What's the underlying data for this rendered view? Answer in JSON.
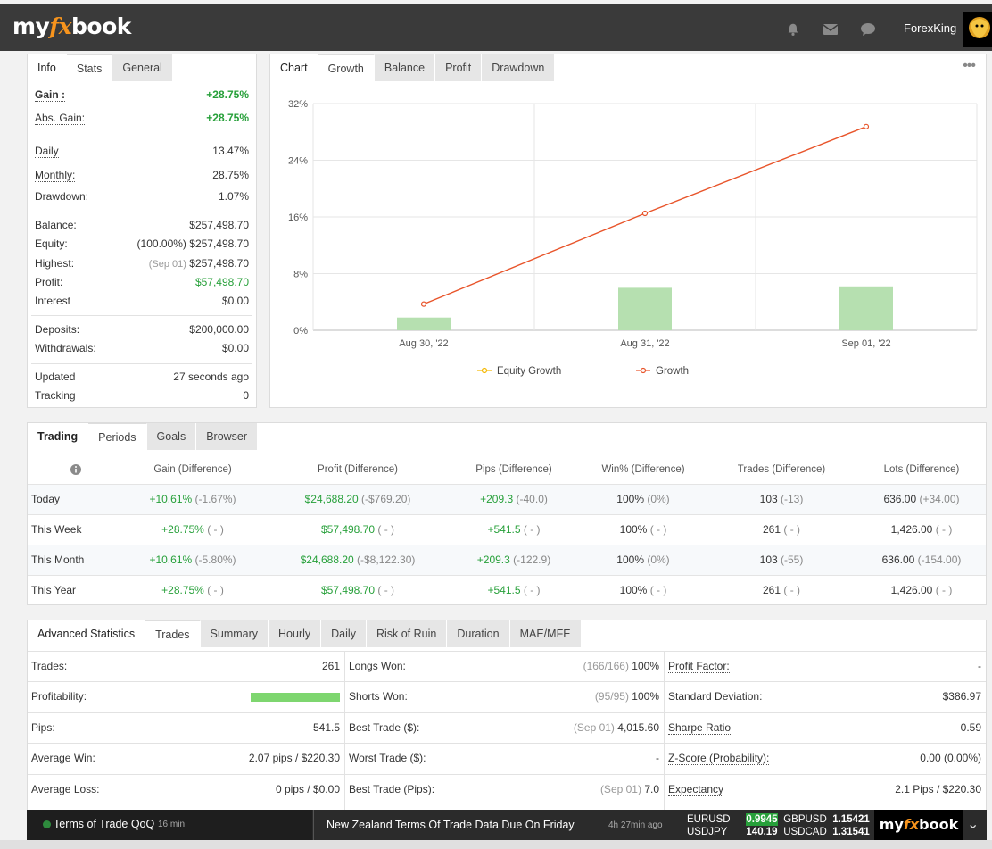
{
  "header": {
    "logo_my": "my",
    "logo_fx": "fx",
    "logo_book": "book",
    "username": "ForexKing",
    "icons": [
      "bell-icon",
      "mail-icon",
      "chat-icon"
    ]
  },
  "info_panel": {
    "tabs": [
      "Info",
      "Stats",
      "General"
    ],
    "rows": {
      "gain": {
        "label": "Gain :",
        "value": "+28.75%"
      },
      "abs_gain": {
        "label": "Abs. Gain:",
        "value": "+28.75%"
      },
      "daily": {
        "label": "Daily",
        "value": "13.47%"
      },
      "monthly": {
        "label": "Monthly:",
        "value": "28.75%"
      },
      "drawdown": {
        "label": "Drawdown:",
        "value": "1.07%"
      },
      "balance": {
        "label": "Balance:",
        "value": "$257,498.70"
      },
      "equity": {
        "label": "Equity:",
        "prefix": "(100.00%)",
        "value": "$257,498.70"
      },
      "highest": {
        "label": "Highest:",
        "prefix": "(Sep 01)",
        "value": "$257,498.70"
      },
      "profit": {
        "label": "Profit:",
        "value": "$57,498.70"
      },
      "interest": {
        "label": "Interest",
        "value": "$0.00"
      },
      "deposits": {
        "label": "Deposits:",
        "value": "$200,000.00"
      },
      "withdrawals": {
        "label": "Withdrawals:",
        "value": "$0.00"
      },
      "updated": {
        "label": "Updated",
        "value": "27 seconds ago"
      },
      "tracking": {
        "label": "Tracking",
        "value": "0"
      }
    }
  },
  "chart_panel": {
    "tabs": [
      "Chart",
      "Growth",
      "Balance",
      "Profit",
      "Drawdown"
    ],
    "menu": "•••"
  },
  "chart_data": {
    "type": "bar",
    "categories": [
      "Aug 30, '22",
      "Aug 31, '22",
      "Sep 01, '22"
    ],
    "yticks": [
      "0%",
      "8%",
      "16%",
      "24%",
      "32%"
    ],
    "ylim": [
      0,
      32
    ],
    "series": [
      {
        "name": "Equity Growth",
        "type": "bar",
        "values": [
          1.8,
          6.0,
          6.2
        ],
        "color": "#b6e0b0"
      },
      {
        "name": "Growth",
        "type": "line",
        "values": [
          3.7,
          16.5,
          28.75
        ],
        "color": "#e8542a"
      }
    ],
    "legend": [
      {
        "name": "Equity Growth",
        "color": "#f5b800"
      },
      {
        "name": "Growth",
        "color": "#e8542a"
      }
    ],
    "legend_position": "bottom",
    "grid": true
  },
  "trading_panel": {
    "tabs": [
      "Trading",
      "Periods",
      "Goals",
      "Browser"
    ],
    "columns": [
      "Gain (Difference)",
      "Profit (Difference)",
      "Pips (Difference)",
      "Win% (Difference)",
      "Trades (Difference)",
      "Lots (Difference)"
    ],
    "rows": [
      {
        "period": "Today",
        "gain": "+10.61%",
        "gain_diff": "(-1.67%)",
        "profit": "$24,688.20",
        "profit_diff": "(-$769.20)",
        "pips": "+209.3",
        "pips_diff": "(-40.0)",
        "win": "100%",
        "win_diff": "(0%)",
        "trades": "103",
        "trades_diff": "(-13)",
        "lots": "636.00",
        "lots_diff": "(+34.00)"
      },
      {
        "period": "This Week",
        "gain": "+28.75%",
        "gain_diff": "( - )",
        "profit": "$57,498.70",
        "profit_diff": "( - )",
        "pips": "+541.5",
        "pips_diff": "( - )",
        "win": "100%",
        "win_diff": "( - )",
        "trades": "261",
        "trades_diff": "( - )",
        "lots": "1,426.00",
        "lots_diff": "( - )"
      },
      {
        "period": "This Month",
        "gain": "+10.61%",
        "gain_diff": "(-5.80%)",
        "profit": "$24,688.20",
        "profit_diff": "(-$8,122.30)",
        "pips": "+209.3",
        "pips_diff": "(-122.9)",
        "win": "100%",
        "win_diff": "(0%)",
        "trades": "103",
        "trades_diff": "(-55)",
        "lots": "636.00",
        "lots_diff": "(-154.00)"
      },
      {
        "period": "This Year",
        "gain": "+28.75%",
        "gain_diff": "( - )",
        "profit": "$57,498.70",
        "profit_diff": "( - )",
        "pips": "+541.5",
        "pips_diff": "( - )",
        "win": "100%",
        "win_diff": "( - )",
        "trades": "261",
        "trades_diff": "( - )",
        "lots": "1,426.00",
        "lots_diff": "( - )"
      }
    ]
  },
  "advanced_panel": {
    "tabs": [
      "Advanced Statistics",
      "Trades",
      "Summary",
      "Hourly",
      "Daily",
      "Risk of Ruin",
      "Duration",
      "MAE/MFE"
    ],
    "col1": [
      {
        "label": "Trades:",
        "value": "261"
      },
      {
        "label": "Profitability:",
        "value": "",
        "bar": 1.0
      },
      {
        "label": "Pips:",
        "value": "541.5"
      },
      {
        "label": "Average Win:",
        "value": "2.07 pips / $220.30"
      },
      {
        "label": "Average Loss:",
        "value": "0 pips / $0.00"
      }
    ],
    "col2": [
      {
        "label": "Longs Won:",
        "prefix": "(166/166)",
        "value": "100%"
      },
      {
        "label": "Shorts Won:",
        "prefix": "(95/95)",
        "value": "100%"
      },
      {
        "label": "Best Trade ($):",
        "prefix": "(Sep 01)",
        "value": "4,015.60"
      },
      {
        "label": "Worst Trade ($):",
        "prefix": "",
        "value": "-"
      },
      {
        "label": "Best Trade (Pips):",
        "prefix": "(Sep 01)",
        "value": "7.0"
      }
    ],
    "col3": [
      {
        "label": "Profit Factor:",
        "value": "-"
      },
      {
        "label": "Standard Deviation:",
        "value": "$386.97"
      },
      {
        "label": "Sharpe Ratio",
        "value": "0.59"
      },
      {
        "label": "Z-Score (Probability):",
        "value": "0.00 (0.00%)"
      },
      {
        "label": "Expectancy",
        "value": "2.1 Pips / $220.30"
      }
    ]
  },
  "ticker": {
    "news1_title": "Terms of Trade QoQ",
    "news1_time": "16 min",
    "news2_title": "New Zealand Terms Of Trade Data Due On Friday",
    "news2_time": "4h 27min ago",
    "quotes": [
      {
        "pair": "EURUSD",
        "price": "0.9945"
      },
      {
        "pair": "GBPUSD",
        "price": "1.15421"
      },
      {
        "pair": "USDJPY",
        "price": "140.19"
      },
      {
        "pair": "USDCAD",
        "price": "1.31541"
      }
    ],
    "chevron": "⌄"
  }
}
